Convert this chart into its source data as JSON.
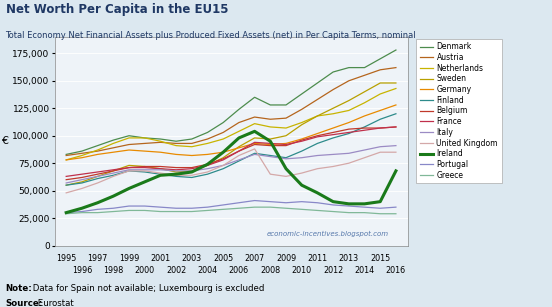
{
  "title": "Net Worth Per Capita in the EU15",
  "subtitle": "Total Economy Net Financial Assets plus Produced Fixed Assets (net) in Per Capita Terms, nominal",
  "ylabel": "€",
  "note_bold": "Note:",
  "note_rest": " Data for Spain not available; Luxembourg is excluded",
  "source_bold": "Source:",
  "source_rest": " Eurostat",
  "watermark": "economic-incentives.blogspot.com",
  "years": [
    1995,
    1996,
    1997,
    1998,
    1999,
    2000,
    2001,
    2002,
    2003,
    2004,
    2005,
    2006,
    2007,
    2008,
    2009,
    2010,
    2011,
    2012,
    2013,
    2014,
    2015,
    2016
  ],
  "series": {
    "Denmark": {
      "color": "#4d8c4d",
      "lw": 0.9,
      "ls": "-",
      "bold": false,
      "data": [
        83000,
        86000,
        91000,
        96000,
        100000,
        98000,
        97000,
        95000,
        97000,
        103000,
        112000,
        124000,
        135000,
        128000,
        128000,
        138000,
        148000,
        158000,
        162000,
        162000,
        170000,
        178000
      ]
    },
    "Austria": {
      "color": "#b5651d",
      "lw": 0.9,
      "ls": "-",
      "bold": false,
      "data": [
        82000,
        84000,
        86000,
        89000,
        92000,
        93000,
        94000,
        93000,
        93000,
        97000,
        103000,
        112000,
        117000,
        115000,
        116000,
        124000,
        133000,
        142000,
        150000,
        155000,
        160000,
        162000
      ]
    },
    "Netherlands": {
      "color": "#c8b400",
      "lw": 0.9,
      "ls": "-",
      "bold": false,
      "data": [
        78000,
        82000,
        87000,
        93000,
        98000,
        98000,
        95000,
        91000,
        90000,
        93000,
        97000,
        104000,
        111000,
        108000,
        107000,
        112000,
        118000,
        120000,
        123000,
        130000,
        138000,
        143000
      ]
    },
    "Sweden": {
      "color": "#b8a000",
      "lw": 0.9,
      "ls": "-",
      "bold": false,
      "data": [
        55000,
        58000,
        63000,
        68000,
        73000,
        72000,
        70000,
        67000,
        68000,
        73000,
        80000,
        90000,
        98000,
        97000,
        100000,
        110000,
        118000,
        125000,
        132000,
        140000,
        148000,
        148000
      ]
    },
    "Germany": {
      "color": "#e88a00",
      "lw": 0.9,
      "ls": "-",
      "bold": false,
      "data": [
        78000,
        80000,
        83000,
        85000,
        87000,
        86000,
        85000,
        83000,
        82000,
        83000,
        85000,
        89000,
        93000,
        92000,
        93000,
        97000,
        102000,
        107000,
        112000,
        118000,
        123000,
        128000
      ]
    },
    "Finland": {
      "color": "#2e8b8b",
      "lw": 0.9,
      "ls": "-",
      "bold": false,
      "data": [
        55000,
        57000,
        61000,
        64000,
        68000,
        67000,
        65000,
        63000,
        62000,
        65000,
        70000,
        77000,
        84000,
        82000,
        80000,
        86000,
        93000,
        98000,
        102000,
        108000,
        115000,
        120000
      ]
    },
    "Belgium": {
      "color": "#c0392b",
      "lw": 0.9,
      "ls": "-",
      "bold": false,
      "data": [
        60000,
        62000,
        65000,
        68000,
        71000,
        72000,
        72000,
        71000,
        71000,
        74000,
        79000,
        86000,
        92000,
        91000,
        91000,
        96000,
        100000,
        103000,
        106000,
        107000,
        107000,
        108000
      ]
    },
    "France": {
      "color": "#c0304b",
      "lw": 0.9,
      "ls": "-",
      "bold": false,
      "data": [
        63000,
        65000,
        67000,
        69000,
        71000,
        71000,
        70000,
        69000,
        70000,
        73000,
        78000,
        86000,
        94000,
        93000,
        92000,
        95000,
        99000,
        101000,
        103000,
        105000,
        107000,
        108000
      ]
    },
    "Italy": {
      "color": "#9b8bc4",
      "lw": 0.9,
      "ls": "-",
      "bold": false,
      "data": [
        57000,
        60000,
        63000,
        66000,
        69000,
        69000,
        69000,
        68000,
        68000,
        70000,
        73000,
        78000,
        83000,
        81000,
        79000,
        80000,
        82000,
        83000,
        84000,
        87000,
        90000,
        91000
      ]
    },
    "United Kingdom": {
      "color": "#d4a8a8",
      "lw": 0.9,
      "ls": "-",
      "bold": false,
      "data": [
        48000,
        52000,
        57000,
        63000,
        68000,
        68000,
        66000,
        64000,
        64000,
        67000,
        73000,
        82000,
        88000,
        65000,
        63000,
        66000,
        70000,
        72000,
        75000,
        80000,
        85000,
        85000
      ]
    },
    "Ireland": {
      "color": "#1a7a1a",
      "lw": 2.2,
      "ls": "-",
      "bold": true,
      "data": [
        30000,
        34000,
        39000,
        45000,
        52000,
        58000,
        64000,
        65000,
        67000,
        74000,
        85000,
        98000,
        104000,
        95000,
        70000,
        55000,
        48000,
        40000,
        38000,
        38000,
        40000,
        68000
      ]
    },
    "Portugal": {
      "color": "#8888c8",
      "lw": 0.9,
      "ls": "-",
      "bold": false,
      "data": [
        30000,
        31000,
        33000,
        34000,
        36000,
        36000,
        35000,
        34000,
        34000,
        35000,
        37000,
        39000,
        41000,
        40000,
        39000,
        40000,
        39000,
        37000,
        36000,
        35000,
        34000,
        35000
      ]
    },
    "Greece": {
      "color": "#80b898",
      "lw": 0.9,
      "ls": "-",
      "bold": false,
      "data": [
        29000,
        30000,
        30000,
        31000,
        32000,
        32000,
        31000,
        31000,
        31000,
        32000,
        33000,
        34000,
        35000,
        35000,
        34000,
        33000,
        32000,
        31000,
        30000,
        30000,
        29000,
        29000
      ]
    }
  },
  "ylim": [
    0,
    190000
  ],
  "yticks": [
    0,
    25000,
    50000,
    75000,
    100000,
    125000,
    150000,
    175000
  ],
  "bg_color": "#dce8f0",
  "plot_bg_color": "#eef3f8",
  "title_color": "#1f3864",
  "subtitle_color": "#1f3864"
}
